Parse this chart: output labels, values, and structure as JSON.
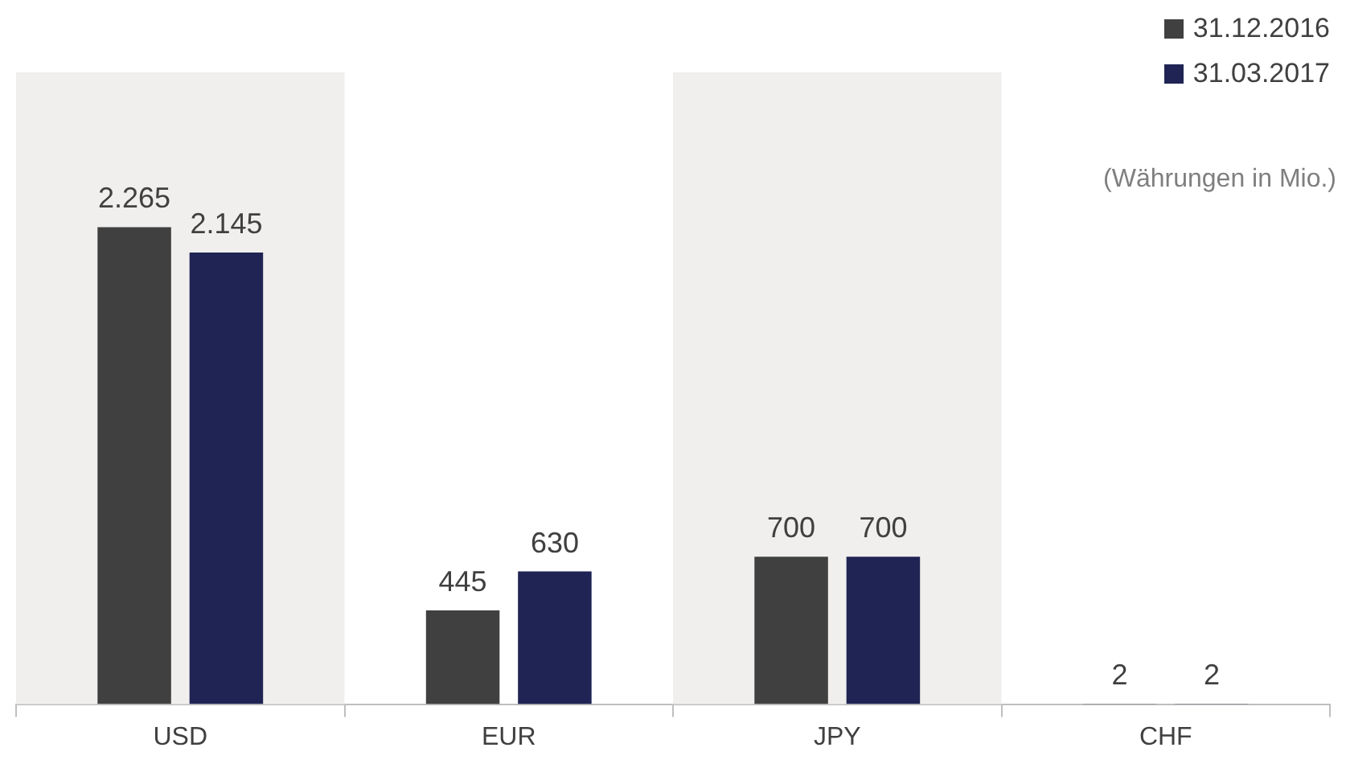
{
  "chart_data": {
    "type": "bar",
    "categories": [
      "USD",
      "EUR",
      "JPY",
      "CHF"
    ],
    "series": [
      {
        "name": "31.12.2016",
        "color": "#404040",
        "values": [
          2265,
          445,
          700,
          2
        ],
        "value_labels": [
          "2.265",
          "445",
          "700",
          "2"
        ]
      },
      {
        "name": "31.03.2017",
        "color": "#1f2454",
        "values": [
          2145,
          630,
          700,
          2
        ],
        "value_labels": [
          "2.145",
          "630",
          "700",
          "2"
        ]
      }
    ],
    "bands": [
      {
        "axis": "x",
        "from": "USD",
        "to": "USD",
        "color": "#f0efed"
      },
      {
        "axis": "x",
        "from": "JPY",
        "to": "JPY",
        "color": "#f0efed"
      }
    ],
    "annotations": [
      "(Währungen in Mio.)"
    ],
    "legend": "top right",
    "grid": false,
    "tick_labels": "x"
  }
}
